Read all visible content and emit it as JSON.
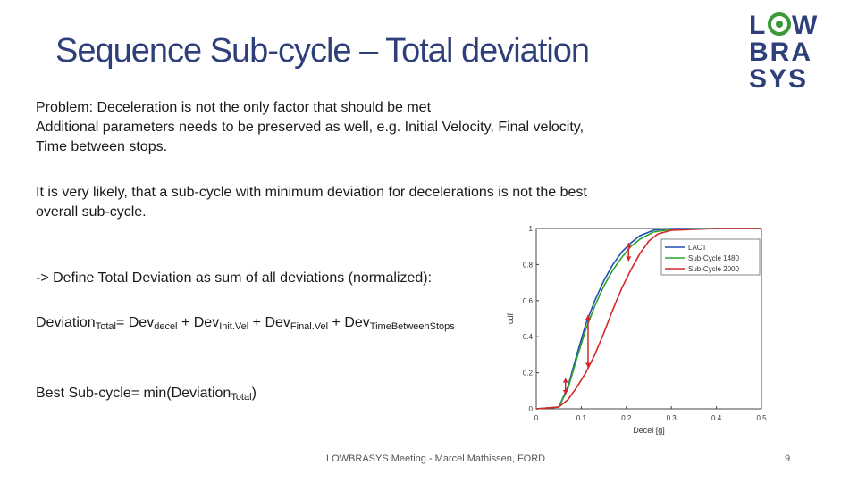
{
  "slide": {
    "title": "Sequence Sub-cycle – Total deviation",
    "paragraph1": [
      "Problem: Deceleration is not the only factor that should be met",
      "Additional parameters needs to be preserved as well, e.g. Initial Velocity, Final velocity,",
      "Time between stops."
    ],
    "paragraph2": [
      "It is very likely, that a sub-cycle with minimum deviation for decelerations is not the best",
      "overall sub-cycle."
    ],
    "paragraph3": "-> Define Total Deviation as sum of all deviations (normalized):",
    "formula": {
      "lhs": "Deviation",
      "lhs_sub": "Total",
      "eq": "= ",
      "t1": "Dev",
      "t1_sub": "decel",
      "plus1": " + ",
      "t2": "Dev",
      "t2_sub": "Init.Vel",
      "plus2": " + ",
      "t3": "Dev",
      "t3_sub": "Final.Vel",
      "plus3": " + ",
      "t4": "Dev",
      "t4_sub": "TimeBetweenStops"
    },
    "best": {
      "prefix": "Best Sub-cycle= min(Deviation",
      "sub": "Total",
      "suffix": ")"
    }
  },
  "logo": {
    "line1": "LOWBRA",
    "line2": "SYS",
    "color_dark": "#2e3f7a",
    "color_green": "#3a9a3a"
  },
  "footer": {
    "text": "LOWBRASYS Meeting - Marcel Mathissen, FORD",
    "page": "9"
  },
  "chart_data": {
    "type": "line",
    "xlabel": "Decel [g]",
    "ylabel": "cdf",
    "xlim": [
      0,
      0.5
    ],
    "ylim": [
      0,
      1
    ],
    "xticks": [
      "0",
      "0.1",
      "0.2",
      "0.3",
      "0.4",
      "0.5"
    ],
    "yticks": [
      "0",
      "0.2",
      "0.4",
      "0.6",
      "0.8",
      "1"
    ],
    "legend_position": "top-right",
    "series": [
      {
        "name": "LACT",
        "color": "#1f4fb4",
        "x": [
          0,
          0.05,
          0.07,
          0.09,
          0.11,
          0.13,
          0.15,
          0.17,
          0.19,
          0.21,
          0.23,
          0.26,
          0.3,
          0.4,
          0.5
        ],
        "y": [
          0,
          0.01,
          0.12,
          0.3,
          0.47,
          0.6,
          0.71,
          0.8,
          0.87,
          0.92,
          0.96,
          0.99,
          1,
          1,
          1
        ]
      },
      {
        "name": "Sub-Cycle 1480",
        "color": "#2ca02c",
        "x": [
          0,
          0.05,
          0.07,
          0.09,
          0.11,
          0.13,
          0.15,
          0.17,
          0.19,
          0.21,
          0.23,
          0.26,
          0.3,
          0.4,
          0.5
        ],
        "y": [
          0,
          0.01,
          0.11,
          0.28,
          0.44,
          0.57,
          0.68,
          0.77,
          0.84,
          0.9,
          0.94,
          0.98,
          0.995,
          1,
          1
        ]
      },
      {
        "name": "Sub-Cycle 2000",
        "color": "#d62728",
        "x": [
          0,
          0.05,
          0.07,
          0.09,
          0.11,
          0.13,
          0.15,
          0.17,
          0.19,
          0.21,
          0.23,
          0.25,
          0.27,
          0.3,
          0.4,
          0.5
        ],
        "y": [
          0,
          0.01,
          0.05,
          0.12,
          0.2,
          0.3,
          0.42,
          0.55,
          0.67,
          0.77,
          0.86,
          0.93,
          0.97,
          0.99,
          1,
          1
        ]
      }
    ],
    "annotations": [
      {
        "type": "double-arrow",
        "x": 0.065,
        "y1": 0.08,
        "y2": 0.17,
        "color": "#d62728"
      },
      {
        "type": "double-arrow",
        "x": 0.115,
        "y1": 0.23,
        "y2": 0.52,
        "color": "#d62728"
      },
      {
        "type": "double-arrow",
        "x": 0.205,
        "y1": 0.82,
        "y2": 0.92,
        "color": "#d62728"
      }
    ]
  }
}
